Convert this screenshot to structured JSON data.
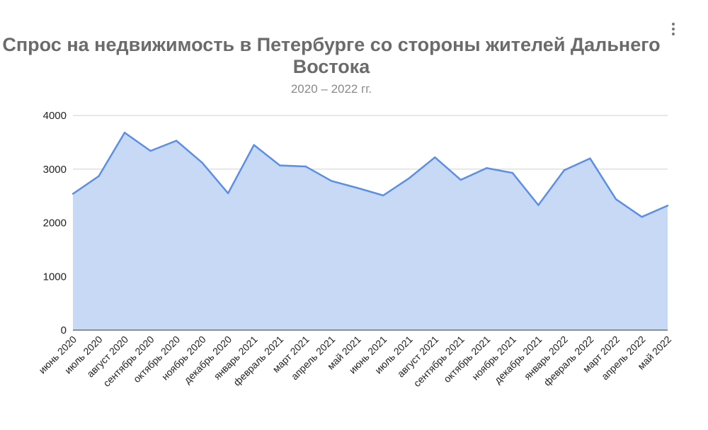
{
  "chart_data": {
    "type": "area",
    "title": "Спрос на недвижимость в Петербурге со стороны жителей Дальнего Востока",
    "subtitle": "2020 – 2022 гг.",
    "xlabel": "",
    "ylabel": "",
    "ylim": [
      0,
      4000
    ],
    "yticks": [
      "0",
      "1000",
      "2000",
      "3000",
      "4000"
    ],
    "grid": true,
    "categories": [
      "июнь 2020",
      "июль 2020",
      "август 2020",
      "сентябрь 2020",
      "октябрь 2020",
      "ноябрь 2020",
      "декабрь 2020",
      "январь 2021",
      "февраль 2021",
      "март 2021",
      "апрель 2021",
      "май 2021",
      "июнь 2021",
      "июль 2021",
      "август 2021",
      "сентябрь 2021",
      "октябрь 2021",
      "ноябрь 2021",
      "декабрь 2021",
      "январь 2022",
      "февраль 2022",
      "март 2022",
      "апрель 2022",
      "май 2022"
    ],
    "values": [
      2540,
      2870,
      3680,
      3340,
      3530,
      3120,
      2550,
      3450,
      3070,
      3050,
      2780,
      2650,
      2510,
      2830,
      3220,
      2800,
      3020,
      2930,
      2330,
      2980,
      3200,
      2440,
      2110,
      2320
    ],
    "colors": {
      "line": "#5b8ee6",
      "fill": "#c8d9f6",
      "grid": "#d0d0d0"
    }
  },
  "ui": {
    "menu_icon": "more-vert-icon"
  }
}
